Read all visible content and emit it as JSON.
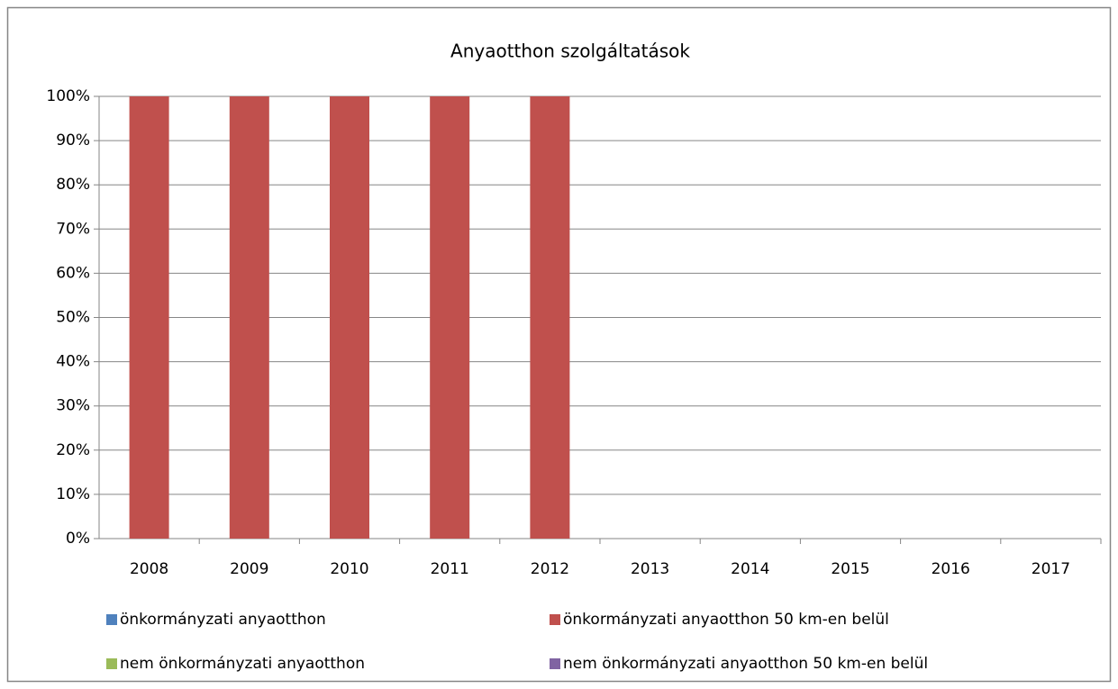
{
  "chart_data": {
    "type": "stacked_bar",
    "title": "Anyaotthon szolgáltatások",
    "categories": [
      "2008",
      "2009",
      "2010",
      "2011",
      "2012",
      "2013",
      "2014",
      "2015",
      "2016",
      "2017"
    ],
    "series": [
      {
        "name": "önkormányzati anyaotthon",
        "color": "#4f81bd",
        "values": [
          0,
          0,
          0,
          0,
          0,
          null,
          null,
          null,
          null,
          null
        ]
      },
      {
        "name": "önkormányzati anyaotthon 50 km-en belül",
        "color": "#c0504d",
        "values": [
          100,
          100,
          100,
          100,
          100,
          null,
          null,
          null,
          null,
          null
        ]
      },
      {
        "name": "nem önkormányzati anyaotthon",
        "color": "#9bbb59",
        "values": [
          0,
          0,
          0,
          0,
          0,
          null,
          null,
          null,
          null,
          null
        ]
      },
      {
        "name": "nem önkormányzati anyaotthon 50 km-en belül",
        "color": "#8064a2",
        "values": [
          0,
          0,
          0,
          0,
          0,
          null,
          null,
          null,
          null,
          null
        ]
      }
    ],
    "ylim": [
      0,
      100
    ],
    "yticks": [
      {
        "value": 0,
        "label": "0%"
      },
      {
        "value": 10,
        "label": "10%"
      },
      {
        "value": 20,
        "label": "20%"
      },
      {
        "value": 30,
        "label": "30%"
      },
      {
        "value": 40,
        "label": "40%"
      },
      {
        "value": 50,
        "label": "50%"
      },
      {
        "value": 60,
        "label": "60%"
      },
      {
        "value": 70,
        "label": "70%"
      },
      {
        "value": 80,
        "label": "80%"
      },
      {
        "value": 90,
        "label": "90%"
      },
      {
        "value": 100,
        "label": "100%"
      }
    ],
    "grid": true
  }
}
